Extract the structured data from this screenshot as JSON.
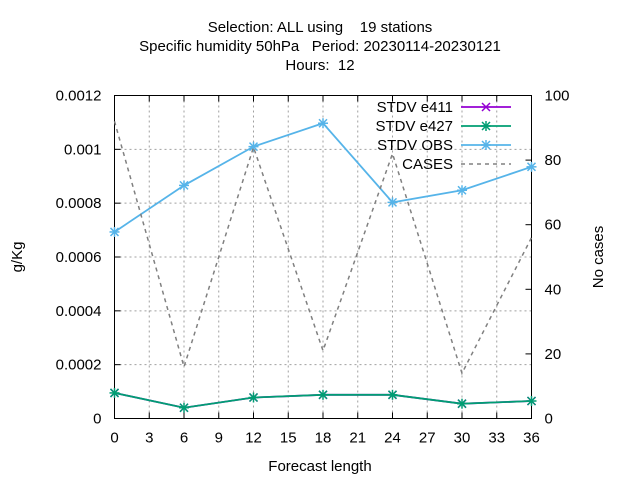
{
  "chart_data": {
    "type": "line",
    "title_lines": [
      "Selection: ALL using    19 stations",
      "Specific humidity 50hPa   Period: 20230114-20230121",
      "Hours:  12"
    ],
    "xlabel": "Forecast length",
    "ylabel": "g/Kg",
    "y2label": "No cases",
    "xlim": [
      0,
      36
    ],
    "ylim": [
      0,
      0.0012
    ],
    "y2lim": [
      0,
      100
    ],
    "x_ticks": [
      "0",
      "3",
      "6",
      "9",
      "12",
      "15",
      "18",
      "21",
      "24",
      "27",
      "30",
      "33",
      "36"
    ],
    "y_ticks": [
      "0",
      "0.0002",
      "0.0004",
      "0.0006",
      "0.0008",
      "0.001",
      "0.0012"
    ],
    "y2_ticks": [
      "0",
      "20",
      "40",
      "60",
      "80",
      "100"
    ],
    "grid": true,
    "legend_position": "top-right",
    "series": [
      {
        "name": "STDV e411",
        "color": "#9400d3",
        "axis": "y",
        "x": [
          0,
          6,
          12,
          18,
          24,
          30,
          36
        ],
        "values": [
          9.5e-05,
          4e-05,
          7.8e-05,
          8.8e-05,
          8.8e-05,
          5.5e-05,
          6.5e-05
        ]
      },
      {
        "name": "STDV e427",
        "color": "#009e73",
        "axis": "y",
        "x": [
          0,
          6,
          12,
          18,
          24,
          30,
          36
        ],
        "values": [
          9.5e-05,
          4e-05,
          7.8e-05,
          8.8e-05,
          8.8e-05,
          5.5e-05,
          6.5e-05
        ]
      },
      {
        "name": "STDV OBS",
        "color": "#56b4e9",
        "axis": "y",
        "x": [
          0,
          6,
          12,
          18,
          24,
          30,
          36
        ],
        "values": [
          0.000693,
          0.000866,
          0.00101,
          0.001097,
          0.000803,
          0.000848,
          0.000935
        ]
      },
      {
        "name": "CASES",
        "color": "#808080",
        "axis": "y2",
        "dashed": true,
        "x": [
          0,
          6,
          12,
          18,
          24,
          30,
          36
        ],
        "values": [
          92,
          16,
          84,
          21,
          82,
          14,
          56
        ]
      }
    ]
  }
}
